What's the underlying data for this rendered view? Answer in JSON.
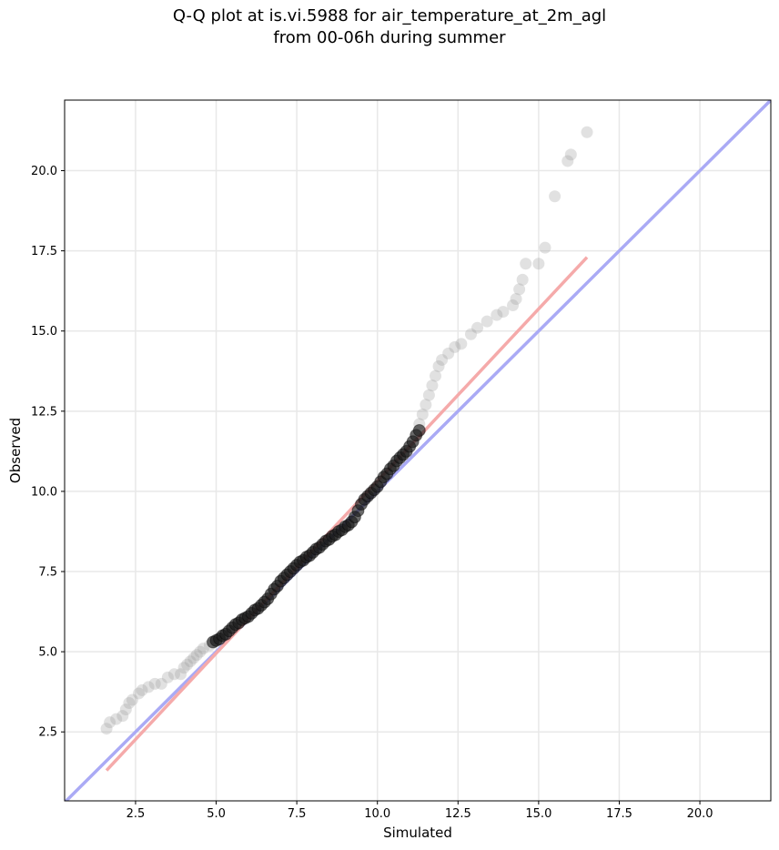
{
  "title_line1": "Q-Q plot at is.vi.5988 for air_temperature_at_2m_agl",
  "title_line2": "from 00-06h during summer",
  "chart_data": {
    "type": "scatter",
    "xlabel": "Simulated",
    "ylabel": "Observed",
    "xlim": [
      0.3,
      22.2
    ],
    "ylim": [
      0.35,
      22.2
    ],
    "xticks": [
      2.5,
      5.0,
      7.5,
      10.0,
      12.5,
      15.0,
      17.5,
      20.0
    ],
    "yticks": [
      2.5,
      5.0,
      7.5,
      10.0,
      12.5,
      15.0,
      17.5,
      20.0
    ],
    "xtick_labels": [
      "2.5",
      "5.0",
      "7.5",
      "10.0",
      "12.5",
      "15.0",
      "17.5",
      "20.0"
    ],
    "ytick_labels": [
      "2.5",
      "5.0",
      "7.5",
      "10.0",
      "12.5",
      "15.0",
      "17.5",
      "20.0"
    ],
    "grid": true,
    "reference_lines": [
      {
        "kind": "identity",
        "color": "#aaaaf5",
        "from": [
          0.3,
          0.3
        ],
        "to": [
          22.2,
          22.2
        ]
      },
      {
        "kind": "fit",
        "color": "#f5aaaa",
        "from": [
          1.6,
          1.3
        ],
        "to": [
          16.5,
          17.3
        ]
      }
    ],
    "tail_color": "#9a9a9a",
    "core_color": "#1a1a1a",
    "tail_points": [
      [
        1.6,
        2.6
      ],
      [
        1.7,
        2.8
      ],
      [
        1.9,
        2.9
      ],
      [
        2.1,
        3.0
      ],
      [
        2.2,
        3.2
      ],
      [
        2.3,
        3.4
      ],
      [
        2.4,
        3.5
      ],
      [
        2.6,
        3.7
      ],
      [
        2.7,
        3.8
      ],
      [
        2.9,
        3.9
      ],
      [
        3.1,
        4.0
      ],
      [
        3.3,
        4.0
      ],
      [
        3.5,
        4.2
      ],
      [
        3.7,
        4.3
      ],
      [
        3.9,
        4.3
      ],
      [
        4.0,
        4.5
      ],
      [
        4.1,
        4.6
      ],
      [
        4.2,
        4.7
      ],
      [
        4.3,
        4.8
      ],
      [
        4.4,
        4.9
      ],
      [
        4.5,
        5.0
      ],
      [
        4.6,
        5.1
      ],
      [
        4.8,
        5.2
      ],
      [
        11.3,
        12.1
      ],
      [
        11.4,
        12.4
      ],
      [
        11.5,
        12.7
      ],
      [
        11.6,
        13.0
      ],
      [
        11.7,
        13.3
      ],
      [
        11.8,
        13.6
      ],
      [
        11.9,
        13.9
      ],
      [
        12.0,
        14.1
      ],
      [
        12.2,
        14.3
      ],
      [
        12.4,
        14.5
      ],
      [
        12.6,
        14.6
      ],
      [
        12.9,
        14.9
      ],
      [
        13.1,
        15.1
      ],
      [
        13.4,
        15.3
      ],
      [
        13.7,
        15.5
      ],
      [
        13.9,
        15.6
      ],
      [
        14.2,
        15.8
      ],
      [
        14.3,
        16.0
      ],
      [
        14.4,
        16.3
      ],
      [
        14.5,
        16.6
      ],
      [
        14.6,
        17.1
      ],
      [
        15.0,
        17.1
      ],
      [
        15.2,
        17.6
      ],
      [
        15.5,
        19.2
      ],
      [
        15.9,
        20.3
      ],
      [
        16.0,
        20.5
      ],
      [
        16.5,
        21.2
      ]
    ],
    "core_points": [
      [
        4.9,
        5.3
      ],
      [
        5.0,
        5.35
      ],
      [
        5.1,
        5.4
      ],
      [
        5.2,
        5.5
      ],
      [
        5.3,
        5.55
      ],
      [
        5.4,
        5.65
      ],
      [
        5.5,
        5.75
      ],
      [
        5.6,
        5.85
      ],
      [
        5.7,
        5.9
      ],
      [
        5.8,
        6.0
      ],
      [
        5.9,
        6.05
      ],
      [
        6.0,
        6.1
      ],
      [
        6.1,
        6.2
      ],
      [
        6.2,
        6.3
      ],
      [
        6.3,
        6.35
      ],
      [
        6.4,
        6.45
      ],
      [
        6.5,
        6.55
      ],
      [
        6.6,
        6.65
      ],
      [
        6.7,
        6.8
      ],
      [
        6.8,
        6.95
      ],
      [
        6.9,
        7.05
      ],
      [
        7.0,
        7.2
      ],
      [
        7.1,
        7.3
      ],
      [
        7.2,
        7.4
      ],
      [
        7.3,
        7.5
      ],
      [
        7.4,
        7.6
      ],
      [
        7.5,
        7.7
      ],
      [
        7.6,
        7.8
      ],
      [
        7.7,
        7.85
      ],
      [
        7.8,
        7.95
      ],
      [
        7.9,
        8.0
      ],
      [
        8.0,
        8.1
      ],
      [
        8.1,
        8.2
      ],
      [
        8.2,
        8.25
      ],
      [
        8.3,
        8.35
      ],
      [
        8.4,
        8.45
      ],
      [
        8.5,
        8.5
      ],
      [
        8.6,
        8.6
      ],
      [
        8.7,
        8.65
      ],
      [
        8.8,
        8.75
      ],
      [
        8.9,
        8.8
      ],
      [
        9.0,
        8.9
      ],
      [
        9.1,
        8.95
      ],
      [
        9.2,
        9.05
      ],
      [
        9.3,
        9.2
      ],
      [
        9.4,
        9.4
      ],
      [
        9.5,
        9.6
      ],
      [
        9.6,
        9.75
      ],
      [
        9.7,
        9.85
      ],
      [
        9.8,
        9.95
      ],
      [
        9.9,
        10.05
      ],
      [
        10.0,
        10.15
      ],
      [
        10.1,
        10.3
      ],
      [
        10.2,
        10.45
      ],
      [
        10.3,
        10.55
      ],
      [
        10.4,
        10.7
      ],
      [
        10.5,
        10.8
      ],
      [
        10.6,
        10.95
      ],
      [
        10.7,
        11.05
      ],
      [
        10.8,
        11.15
      ],
      [
        10.9,
        11.25
      ],
      [
        11.0,
        11.4
      ],
      [
        11.1,
        11.55
      ],
      [
        11.2,
        11.75
      ],
      [
        11.3,
        11.9
      ]
    ]
  }
}
